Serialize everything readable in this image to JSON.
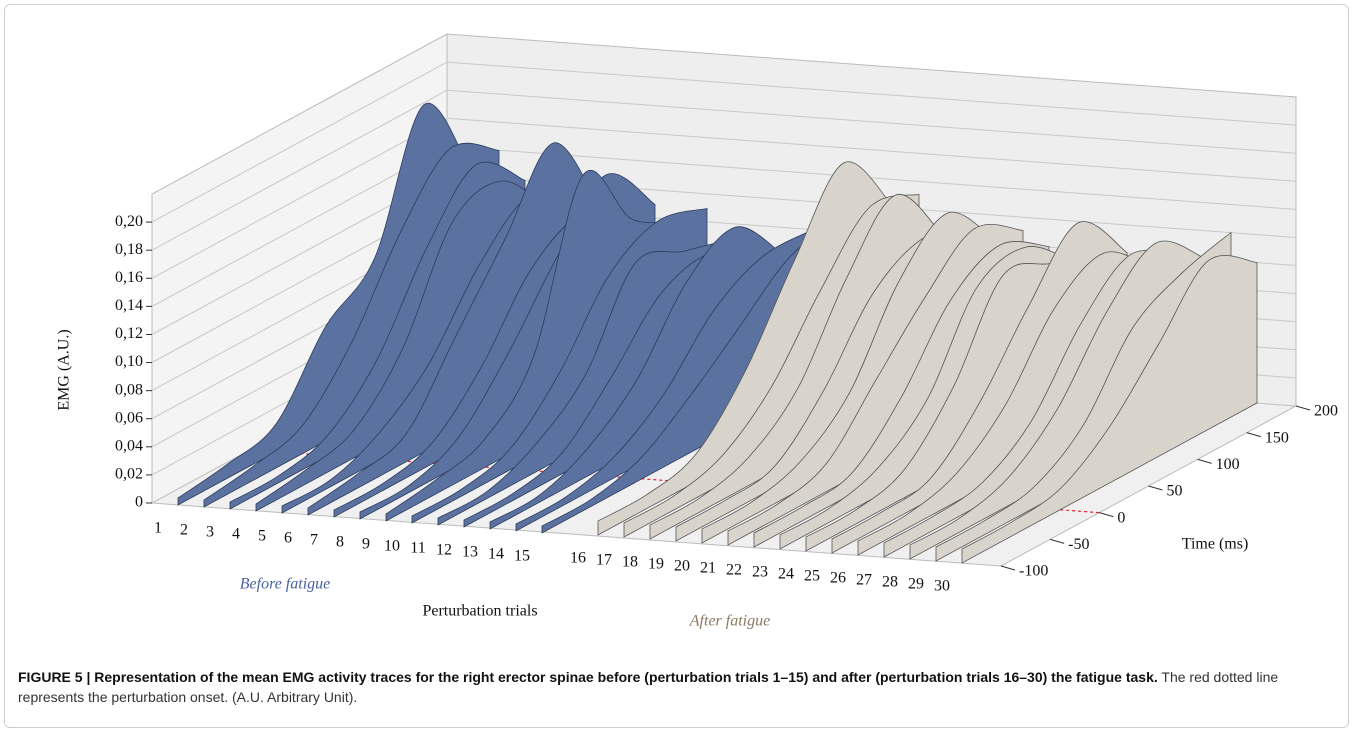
{
  "chart_data": {
    "type": "waterfall",
    "ylabel": "EMG (A.U.)",
    "xlabel": "Time (ms)",
    "trials_label": "Perturbation trials",
    "x": [
      -100,
      -50,
      0,
      50,
      100,
      150,
      200
    ],
    "xlim": [
      -100,
      200
    ],
    "xticks": [
      -100,
      -50,
      0,
      50,
      100,
      150,
      200
    ],
    "ylim": [
      0,
      0.22
    ],
    "yticks": [
      0,
      {
        "value": 0.02,
        "label": "0,02"
      },
      {
        "value": 0.04,
        "label": "0,04"
      },
      {
        "value": 0.06,
        "label": "0,06"
      },
      {
        "value": 0.08,
        "label": "0,08"
      },
      {
        "value": 0.1,
        "label": "0,10"
      },
      {
        "value": 0.12,
        "label": "0,12"
      },
      {
        "value": 0.14,
        "label": "0,14"
      },
      {
        "value": 0.16,
        "label": "0,16"
      },
      {
        "value": 0.18,
        "label": "0,18"
      },
      {
        "value": 0.2,
        "label": "0,20"
      }
    ],
    "grid": true,
    "onset": {
      "x": 0,
      "color": "#e02020"
    },
    "series": [
      {
        "name": "Before fatigue",
        "color": "#5b72a0",
        "categories": [
          "1",
          "2",
          "3",
          "4",
          "5",
          "6",
          "7",
          "8",
          "9",
          "10",
          "11",
          "12",
          "13",
          "14",
          "15"
        ],
        "values": [
          [
            0.005,
            0.01,
            0.02,
            0.07,
            0.1,
            0.19,
            0.12
          ],
          [
            0.005,
            0.01,
            0.02,
            0.06,
            0.12,
            0.16,
            0.14
          ],
          [
            0.005,
            0.005,
            0.015,
            0.05,
            0.11,
            0.15,
            0.12
          ],
          [
            0.005,
            0.01,
            0.02,
            0.06,
            0.13,
            0.14,
            0.1
          ],
          [
            0.005,
            0.005,
            0.02,
            0.05,
            0.1,
            0.13,
            0.11
          ],
          [
            0.005,
            0.01,
            0.02,
            0.07,
            0.12,
            0.17,
            0.1
          ],
          [
            0.005,
            0.005,
            0.015,
            0.05,
            0.1,
            0.12,
            0.1
          ],
          [
            0.005,
            0.005,
            0.02,
            0.06,
            0.11,
            0.15,
            0.11
          ],
          [
            0.005,
            0.01,
            0.02,
            0.06,
            0.17,
            0.12,
            0.1
          ],
          [
            0.005,
            0.005,
            0.015,
            0.05,
            0.1,
            0.12,
            0.11
          ],
          [
            0.005,
            0.005,
            0.02,
            0.05,
            0.11,
            0.1,
            0.09
          ],
          [
            0.005,
            0.005,
            0.015,
            0.05,
            0.09,
            0.1,
            0.08
          ],
          [
            0.005,
            0.005,
            0.02,
            0.05,
            0.1,
            0.12,
            0.08
          ],
          [
            0.005,
            0.005,
            0.015,
            0.04,
            0.08,
            0.1,
            0.1
          ],
          [
            0.005,
            0.005,
            0.015,
            0.04,
            0.07,
            0.1,
            0.11
          ]
        ]
      },
      {
        "name": "After fatigue",
        "color": "#d8d3cb",
        "categories": [
          "16",
          "17",
          "18",
          "19",
          "20",
          "21",
          "22",
          "23",
          "24",
          "25",
          "26",
          "27",
          "28",
          "29",
          "30"
        ],
        "values": [
          [
            0.01,
            0.01,
            0.02,
            0.06,
            0.12,
            0.17,
            0.12
          ],
          [
            0.01,
            0.01,
            0.02,
            0.05,
            0.1,
            0.14,
            0.13
          ],
          [
            0.01,
            0.01,
            0.02,
            0.05,
            0.11,
            0.15,
            0.1
          ],
          [
            0.01,
            0.01,
            0.015,
            0.05,
            0.1,
            0.12,
            0.11
          ],
          [
            0.01,
            0.01,
            0.02,
            0.05,
            0.11,
            0.14,
            0.1
          ],
          [
            0.01,
            0.01,
            0.02,
            0.06,
            0.1,
            0.13,
            0.11
          ],
          [
            0.01,
            0.01,
            0.015,
            0.05,
            0.1,
            0.12,
            0.1
          ],
          [
            0.01,
            0.01,
            0.02,
            0.05,
            0.11,
            0.12,
            0.09
          ],
          [
            0.01,
            0.01,
            0.02,
            0.06,
            0.12,
            0.11,
            0.1
          ],
          [
            0.01,
            0.01,
            0.015,
            0.05,
            0.1,
            0.14,
            0.1
          ],
          [
            0.01,
            0.01,
            0.02,
            0.05,
            0.1,
            0.12,
            0.09
          ],
          [
            0.01,
            0.01,
            0.015,
            0.04,
            0.09,
            0.12,
            0.1
          ],
          [
            0.01,
            0.01,
            0.02,
            0.05,
            0.1,
            0.13,
            0.1
          ],
          [
            0.01,
            0.01,
            0.015,
            0.04,
            0.09,
            0.11,
            0.12
          ],
          [
            0.01,
            0.01,
            0.015,
            0.04,
            0.08,
            0.12,
            0.1
          ]
        ]
      }
    ]
  },
  "caption": {
    "title": "FIGURE 5 | Representation of the mean EMG activity traces for the right erector spinae before (perturbation trials 1–15) and after (perturbation trials 16–30) the fatigue task.",
    "text": "The red dotted line represents the perturbation onset. (A.U. Arbitrary Unit)."
  }
}
